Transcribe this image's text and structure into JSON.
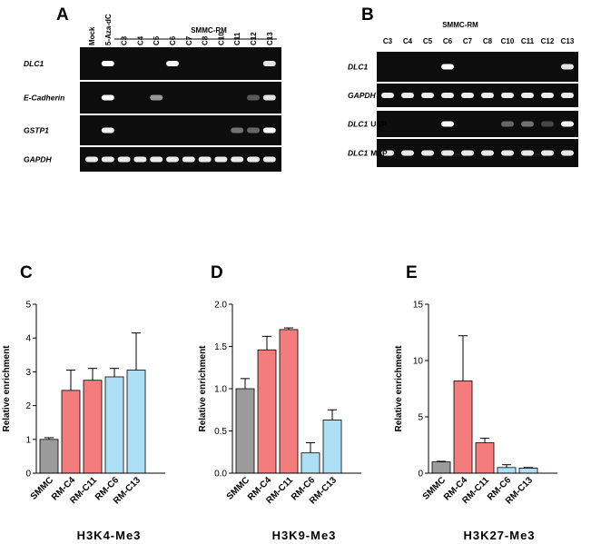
{
  "gels": [
    {
      "label": "A",
      "group": "SMMC-RM",
      "lanes": [
        "Mock",
        "5-Aza-dC",
        "C3",
        "C4",
        "C5",
        "C6",
        "C7",
        "C8",
        "C10",
        "C11",
        "C12",
        "C13"
      ],
      "rows": [
        {
          "name": "DLC1"
        },
        {
          "name": "E-Cadherin"
        },
        {
          "name": "GSTP1"
        },
        {
          "name": "GAPDH"
        }
      ]
    },
    {
      "label": "B",
      "group": "SMMC-RM",
      "lanes": [
        "C3",
        "C4",
        "C5",
        "C6",
        "C7",
        "C8",
        "C10",
        "C11",
        "C12",
        "C13"
      ],
      "rows": [
        {
          "name": "DLC1"
        },
        {
          "name": "GAPDH"
        },
        {
          "name": "DLC1",
          "suffix": "USP"
        },
        {
          "name": "DLC1",
          "suffix": "MSP"
        }
      ]
    }
  ],
  "chart_data": [
    {
      "type": "bar",
      "label": "C",
      "title": "H3K4-Me3",
      "ylabel": "Relative enrichment",
      "categories": [
        "SMMC",
        "RM-C4",
        "RM-C11",
        "RM-C6",
        "RM-C13"
      ],
      "values": [
        1.0,
        2.45,
        2.75,
        2.85,
        3.05
      ],
      "errors": [
        0.05,
        0.6,
        0.35,
        0.25,
        1.1
      ],
      "colors": [
        "#9b9b9b",
        "#f47c7c",
        "#f47c7c",
        "#aee0f5",
        "#aee0f5"
      ],
      "ylim": [
        0,
        5
      ],
      "yticks": [
        0,
        1,
        2,
        3,
        4,
        5
      ]
    },
    {
      "type": "bar",
      "label": "D",
      "title": "H3K9-Me3",
      "ylabel": "Relative enrichment",
      "categories": [
        "SMMC",
        "RM-C4",
        "RM-C11",
        "RM-C6",
        "RM-C13"
      ],
      "values": [
        1.0,
        1.46,
        1.7,
        0.24,
        0.63
      ],
      "errors": [
        0.12,
        0.16,
        0.02,
        0.12,
        0.12
      ],
      "colors": [
        "#9b9b9b",
        "#f47c7c",
        "#f47c7c",
        "#aee0f5",
        "#aee0f5"
      ],
      "ylim": [
        0,
        2
      ],
      "yticks": [
        {
          "value": 0,
          "label": "0.0"
        },
        {
          "value": 0.5,
          "label": "0.5"
        },
        {
          "value": 1,
          "label": "1.0"
        },
        {
          "value": 1.5,
          "label": "1.5"
        },
        {
          "value": 2,
          "label": "2.0"
        }
      ]
    },
    {
      "type": "bar",
      "label": "E",
      "title": "H3K27-Me3",
      "ylabel": "Relative enrichment",
      "categories": [
        "SMMC",
        "RM-C4",
        "RM-C11",
        "RM-C6",
        "RM-C13"
      ],
      "values": [
        1.0,
        8.2,
        2.7,
        0.5,
        0.45
      ],
      "errors": [
        0.05,
        4.0,
        0.4,
        0.25,
        0.05
      ],
      "colors": [
        "#9b9b9b",
        "#f47c7c",
        "#f47c7c",
        "#aee0f5",
        "#aee0f5"
      ],
      "ylim": [
        0,
        15
      ],
      "yticks": [
        0,
        5,
        10,
        15
      ]
    }
  ]
}
